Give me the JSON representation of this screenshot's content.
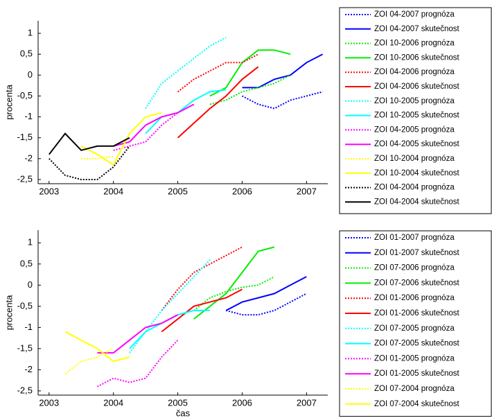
{
  "chart_data": [
    {
      "type": "line",
      "y_label": "procenta",
      "xlim": [
        2002.83,
        2007.33
      ],
      "xticks": [
        2003,
        2004,
        2005,
        2006,
        2007
      ],
      "ylim": [
        -2.6,
        1.3
      ],
      "yticks": [
        1,
        {
          "value": 0.5,
          "label": "0,5"
        },
        0,
        {
          "value": -0.5,
          "label": "-0,5"
        },
        -1,
        {
          "value": -1.5,
          "label": "-1,5"
        },
        -2,
        {
          "value": -2.5,
          "label": "-2,5"
        }
      ],
      "series": [
        {
          "name": "ZOI 04-2007 prognóza",
          "color": "#0000ff",
          "style": "dotted",
          "x": [
            2006,
            2006.25,
            2006.5,
            2006.75,
            2007,
            2007.25
          ],
          "values": [
            -0.5,
            -0.7,
            -0.8,
            -0.6,
            -0.5,
            -0.4
          ]
        },
        {
          "name": "ZOI 04-2007 skutečnost",
          "color": "#0000ff",
          "style": "solid",
          "x": [
            2006,
            2006.25,
            2006.5,
            2006.75,
            2007,
            2007.25
          ],
          "values": [
            -0.3,
            -0.3,
            -0.1,
            0.0,
            0.3,
            0.5
          ]
        },
        {
          "name": "ZOI 10-2006 prognóza",
          "color": "#00ee00",
          "style": "dotted",
          "x": [
            2005.5,
            2005.75,
            2006,
            2006.25,
            2006.5,
            2006.75
          ],
          "values": [
            -0.7,
            -0.6,
            -0.4,
            -0.3,
            -0.2,
            0.0
          ]
        },
        {
          "name": "ZOI 10-2006 skutečnost",
          "color": "#00ee00",
          "style": "solid",
          "x": [
            2005.5,
            2005.75,
            2006,
            2006.25,
            2006.5,
            2006.75
          ],
          "values": [
            -0.5,
            -0.3,
            0.3,
            0.6,
            0.6,
            0.5
          ]
        },
        {
          "name": "ZOI 04-2006 prognóza",
          "color": "#ff0000",
          "style": "dotted",
          "x": [
            2005,
            2005.25,
            2005.5,
            2005.75,
            2006,
            2006.25
          ],
          "values": [
            -0.4,
            -0.1,
            0.1,
            0.3,
            0.3,
            0.5
          ]
        },
        {
          "name": "ZOI 04-2006 skutečnost",
          "color": "#ff0000",
          "style": "solid",
          "x": [
            2005,
            2005.25,
            2005.5,
            2005.75,
            2006,
            2006.25
          ],
          "values": [
            -1.5,
            -1.15,
            -0.8,
            -0.5,
            -0.1,
            0.2
          ]
        },
        {
          "name": "ZOI 10-2005 prognóza",
          "color": "#00ffff",
          "style": "dotted",
          "x": [
            2004.5,
            2004.75,
            2005,
            2005.25,
            2005.5,
            2005.75
          ],
          "values": [
            -0.8,
            -0.2,
            0.1,
            0.4,
            0.7,
            0.9
          ]
        },
        {
          "name": "ZOI 10-2005 skutečnost",
          "color": "#00ffff",
          "style": "solid",
          "x": [
            2004.5,
            2004.75,
            2005,
            2005.25,
            2005.5,
            2005.75
          ],
          "values": [
            -1.4,
            -1.0,
            -0.9,
            -0.6,
            -0.4,
            -0.35
          ]
        },
        {
          "name": "ZOI 04-2005 prognóza",
          "color": "#ff00ff",
          "style": "dotted",
          "x": [
            2004,
            2004.25,
            2004.5,
            2004.75,
            2005
          ],
          "values": [
            -1.8,
            -1.7,
            -1.6,
            -1.2,
            -0.9
          ]
        },
        {
          "name": "ZOI 04-2005 skutečnost",
          "color": "#ff00ff",
          "style": "solid",
          "x": [
            2004,
            2004.25,
            2004.5,
            2004.75,
            2005,
            2005.25
          ],
          "values": [
            -1.7,
            -1.6,
            -1.2,
            -1.0,
            -0.9,
            -0.7
          ]
        },
        {
          "name": "ZOI 10-2004 prognóza",
          "color": "#ffff00",
          "style": "dotted",
          "x": [
            2003.5,
            2003.75,
            2004
          ],
          "values": [
            -2.0,
            -2.0,
            -1.95
          ]
        },
        {
          "name": "ZOI 10-2004 skutečnost",
          "color": "#ffff00",
          "style": "solid",
          "x": [
            2003.5,
            2003.75,
            2004,
            2004.25,
            2004.5,
            2004.75
          ],
          "values": [
            -1.7,
            -1.9,
            -2.15,
            -1.4,
            -1.0,
            -0.9
          ]
        },
        {
          "name": "ZOI 04-2004 prognóza",
          "color": "#000000",
          "style": "dotted",
          "x": [
            2003,
            2003.25,
            2003.5,
            2003.75,
            2004,
            2004.25
          ],
          "values": [
            -2.0,
            -2.4,
            -2.5,
            -2.5,
            -2.2,
            -1.7
          ]
        },
        {
          "name": "ZOI 04-2004 skutečnost",
          "color": "#000000",
          "style": "solid",
          "x": [
            2003,
            2003.25,
            2003.5,
            2003.75,
            2004,
            2004.25
          ],
          "values": [
            -1.9,
            -1.4,
            -1.8,
            -1.7,
            -1.7,
            -1.5
          ]
        }
      ]
    },
    {
      "type": "line",
      "y_label": "procenta",
      "x_label": "čas",
      "xlim": [
        2002.83,
        2007.33
      ],
      "xticks": [
        2003,
        2004,
        2005,
        2006,
        2007
      ],
      "ylim": [
        -2.6,
        1.3
      ],
      "yticks": [
        1,
        {
          "value": 0.5,
          "label": "0,5"
        },
        0,
        {
          "value": -0.5,
          "label": "-0,5"
        },
        -1,
        {
          "value": -1.5,
          "label": "-1,5"
        },
        -2,
        {
          "value": -2.5,
          "label": "-2,5"
        }
      ],
      "series": [
        {
          "name": "ZOI 01-2007 prognóza",
          "color": "#0000ff",
          "style": "dotted",
          "x": [
            2005.75,
            2006,
            2006.25,
            2006.5,
            2006.75,
            2007
          ],
          "values": [
            -0.6,
            -0.7,
            -0.7,
            -0.6,
            -0.4,
            -0.2
          ]
        },
        {
          "name": "ZOI 01-2007 skutečnost",
          "color": "#0000ff",
          "style": "solid",
          "x": [
            2005.75,
            2006,
            2006.25,
            2006.5,
            2006.75,
            2007
          ],
          "values": [
            -0.6,
            -0.4,
            -0.3,
            -0.2,
            0.0,
            0.2
          ]
        },
        {
          "name": "ZOI 07-2006 prognóza",
          "color": "#00ee00",
          "style": "dotted",
          "x": [
            2005.25,
            2005.5,
            2005.75,
            2006,
            2006.25,
            2006.5
          ],
          "values": [
            -0.6,
            -0.3,
            -0.15,
            -0.05,
            0.0,
            0.2
          ]
        },
        {
          "name": "ZOI 07-2006 skutečnost",
          "color": "#00ee00",
          "style": "solid",
          "x": [
            2005.25,
            2005.5,
            2005.75,
            2006,
            2006.25,
            2006.5
          ],
          "values": [
            -0.8,
            -0.5,
            -0.2,
            0.3,
            0.8,
            0.9
          ]
        },
        {
          "name": "ZOI 01-2006 prognóza",
          "color": "#ff0000",
          "style": "dotted",
          "x": [
            2004.75,
            2005,
            2005.25,
            2005.5,
            2005.75,
            2006
          ],
          "values": [
            -0.6,
            -0.1,
            0.3,
            0.5,
            0.7,
            0.9
          ]
        },
        {
          "name": "ZOI 01-2006 skutečnost",
          "color": "#ff0000",
          "style": "solid",
          "x": [
            2004.75,
            2005,
            2005.25,
            2005.5,
            2005.75,
            2006
          ],
          "values": [
            -1.1,
            -0.8,
            -0.5,
            -0.4,
            -0.3,
            -0.1
          ]
        },
        {
          "name": "ZOI 07-2005 prognóza",
          "color": "#00ffff",
          "style": "dotted",
          "x": [
            2004.25,
            2004.5,
            2004.75,
            2005,
            2005.25,
            2005.5
          ],
          "values": [
            -1.6,
            -1.1,
            -0.6,
            -0.2,
            0.2,
            0.6
          ]
        },
        {
          "name": "ZOI 07-2005 skutečnost",
          "color": "#00ffff",
          "style": "solid",
          "x": [
            2004.25,
            2004.5,
            2004.75,
            2005,
            2005.25,
            2005.5
          ],
          "values": [
            -1.5,
            -1.1,
            -0.9,
            -0.7,
            -0.6,
            -0.6
          ]
        },
        {
          "name": "ZOI 01-2005 prognóza",
          "color": "#ff00ff",
          "style": "dotted",
          "x": [
            2003.75,
            2004,
            2004.25,
            2004.5,
            2004.75,
            2005
          ],
          "values": [
            -2.4,
            -2.2,
            -2.3,
            -2.2,
            -1.7,
            -1.3
          ]
        },
        {
          "name": "ZOI 01-2005 skutečnost",
          "color": "#ff00ff",
          "style": "solid",
          "x": [
            2003.75,
            2004,
            2004.25,
            2004.5,
            2004.75,
            2005
          ],
          "values": [
            -1.6,
            -1.6,
            -1.3,
            -1.0,
            -0.9,
            -0.7
          ]
        },
        {
          "name": "ZOI 07-2004 prognóza",
          "color": "#ffff00",
          "style": "dotted",
          "x": [
            2003.25,
            2003.5,
            2003.75,
            2004
          ],
          "values": [
            -2.1,
            -1.8,
            -1.7,
            -1.5
          ]
        },
        {
          "name": "ZOI 07-2004 skutečnost",
          "color": "#ffff00",
          "style": "solid",
          "x": [
            2003.25,
            2003.5,
            2003.75,
            2004,
            2004.25
          ],
          "values": [
            -1.1,
            -1.3,
            -1.5,
            -1.8,
            -1.7
          ]
        }
      ]
    }
  ]
}
